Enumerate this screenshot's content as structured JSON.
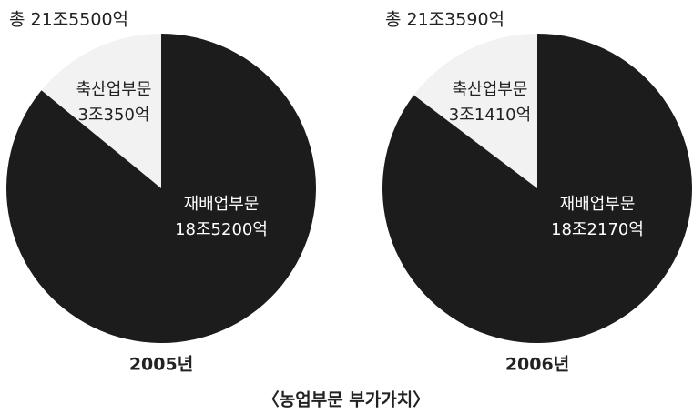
{
  "chart_data": [
    {
      "type": "pie",
      "title": "총 21조5500억",
      "xlabel": "2005년",
      "categories": [
        "축산업부문",
        "재배업부문"
      ],
      "values": [
        30350,
        185200
      ],
      "value_labels": [
        "3조350억",
        "18조5200억"
      ],
      "colors": [
        "#f2f2f2",
        "#1c1c1c"
      ]
    },
    {
      "type": "pie",
      "title": "총 21조3590억",
      "xlabel": "2006년",
      "categories": [
        "축산업부문",
        "재배업부문"
      ],
      "values": [
        31410,
        182170
      ],
      "value_labels": [
        "3조1410억",
        "18조2170억"
      ],
      "colors": [
        "#f2f2f2",
        "#1c1c1c"
      ]
    }
  ],
  "caption": "〈농업부문 부가가치〉"
}
